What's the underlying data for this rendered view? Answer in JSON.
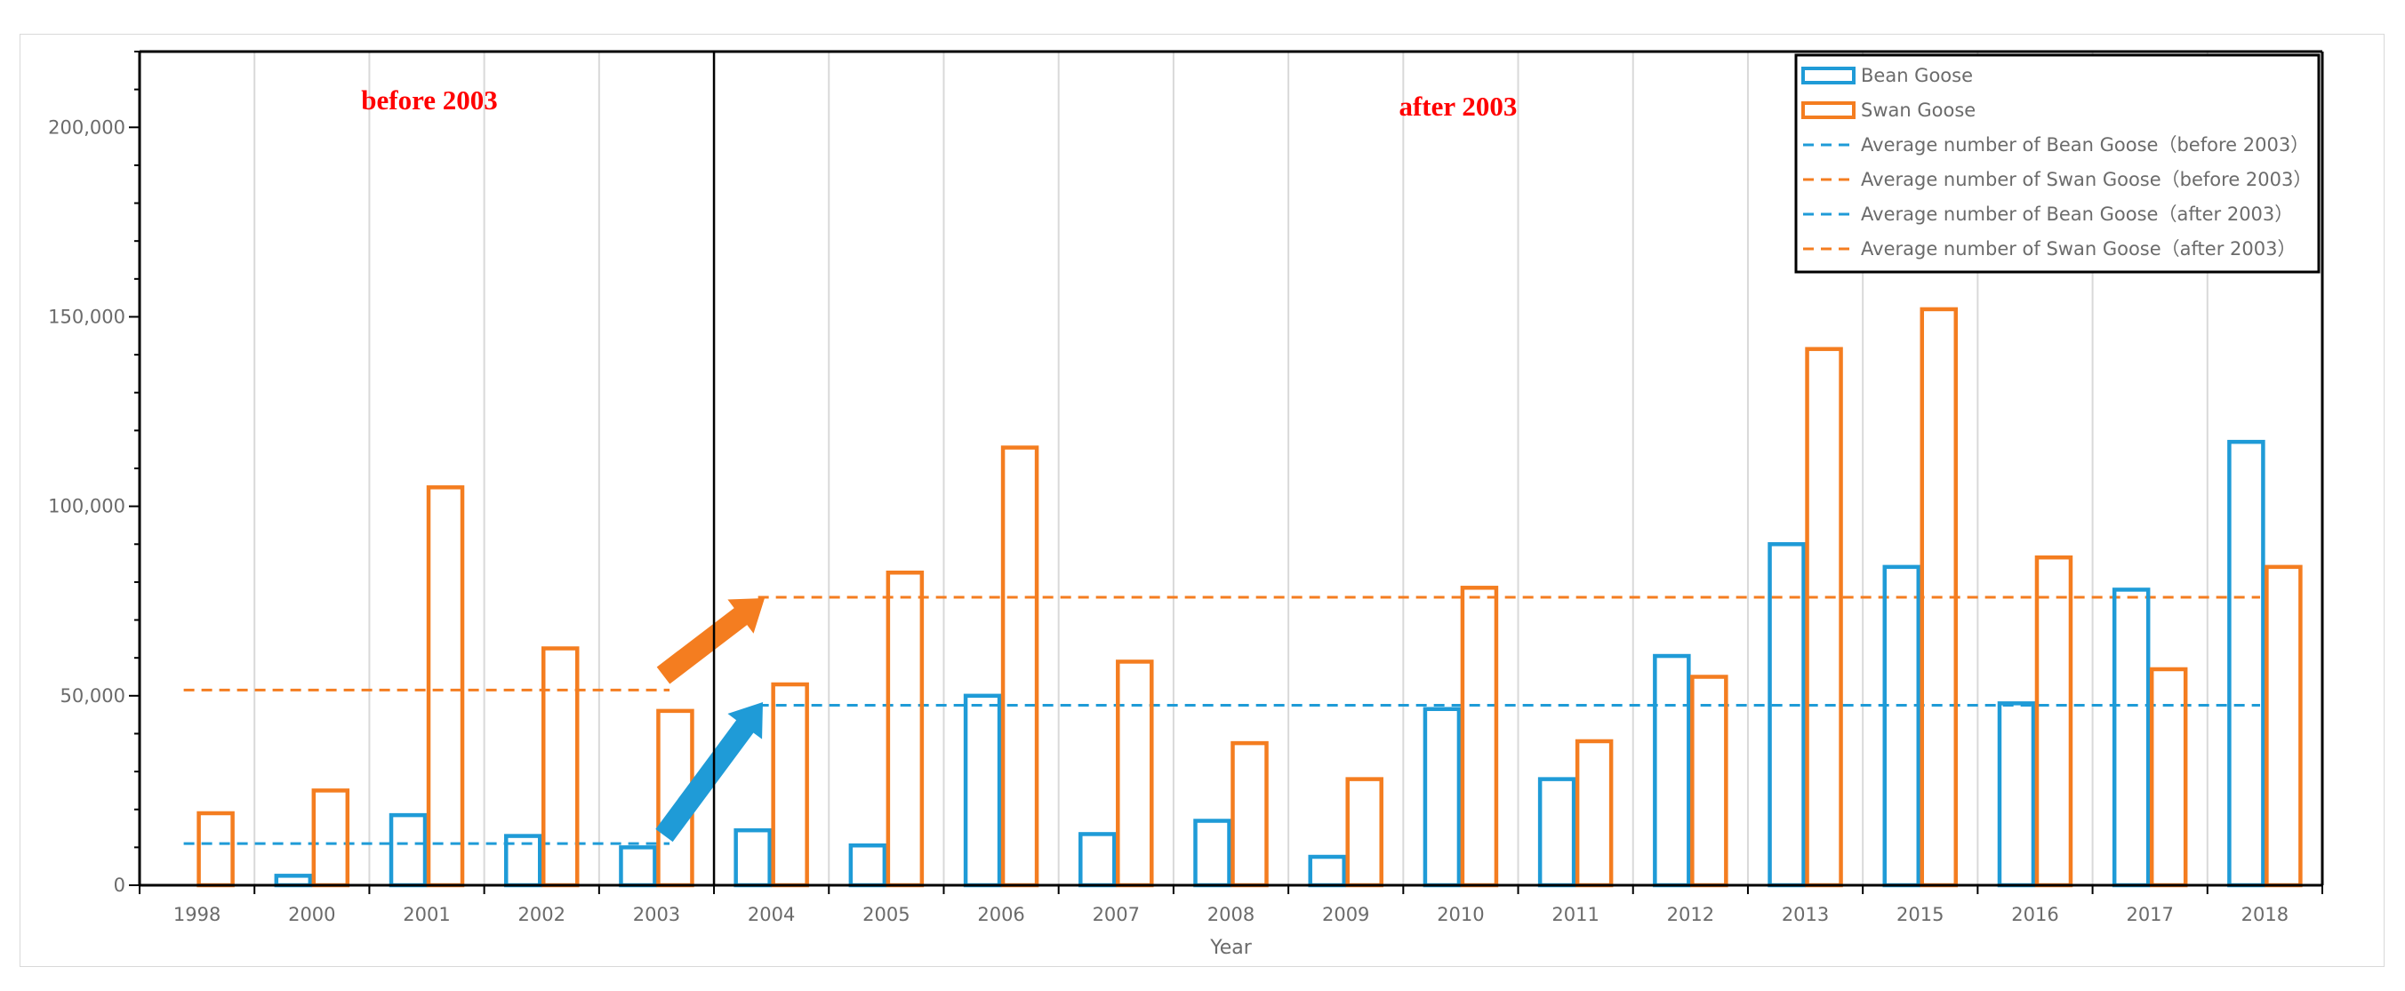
{
  "chart_data": {
    "type": "bar",
    "xlabel": "Year",
    "ylabel": "",
    "ylim": [
      0,
      220000
    ],
    "yticks": [
      0,
      50000,
      100000,
      150000,
      200000
    ],
    "ytick_labels": [
      "0",
      "50,000",
      "100,000",
      "150,000",
      "200,000"
    ],
    "categories": [
      "1998",
      "2000",
      "2001",
      "2002",
      "2003",
      "2004",
      "2005",
      "2006",
      "2007",
      "2008",
      "2009",
      "2010",
      "2011",
      "2012",
      "2013",
      "2015",
      "2016",
      "2017",
      "2018"
    ],
    "series": [
      {
        "name": "Bean Goose",
        "color": "#1f9bd7",
        "values": [
          0,
          2500,
          18500,
          13000,
          10000,
          14500,
          10500,
          50000,
          13500,
          17000,
          7500,
          46500,
          28000,
          60500,
          90000,
          84000,
          48000,
          78000,
          117000
        ]
      },
      {
        "name": "Swan Goose",
        "color": "#f47d20",
        "values": [
          19000,
          25000,
          105000,
          62500,
          46000,
          53000,
          82500,
          115500,
          59000,
          37500,
          28000,
          78500,
          38000,
          55000,
          141500,
          152000,
          86500,
          57000,
          84000
        ]
      }
    ],
    "averages": [
      {
        "name": "Average number of Bean Goose（before 2003）",
        "color": "#1f9bd7",
        "value": 11000,
        "from": "1998",
        "to": "2003"
      },
      {
        "name": "Average number of Swan Goose（before 2003）",
        "color": "#f47d20",
        "value": 51500,
        "from": "1998",
        "to": "2003"
      },
      {
        "name": "Average number of Bean Goose（after 2003）",
        "color": "#1f9bd7",
        "value": 47500,
        "from": "2004",
        "to": "2018"
      },
      {
        "name": "Average number of Swan Goose（after 2003）",
        "color": "#f47d20",
        "value": 76000,
        "from": "2004",
        "to": "2018"
      }
    ],
    "annotations": {
      "before": "before 2003",
      "after": "after 2003",
      "divider_after": "2003"
    },
    "legend_position": "top-right",
    "grid": "vertical"
  }
}
